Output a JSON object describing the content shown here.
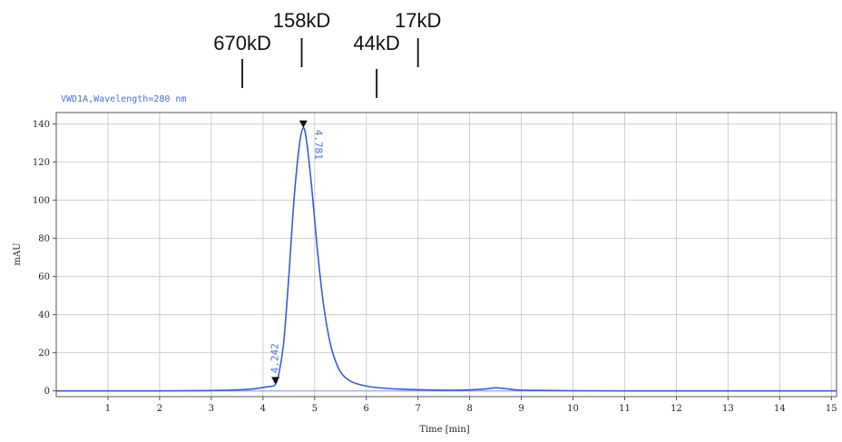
{
  "chart_data": {
    "type": "line",
    "signal_label": "VWD1A,Wavelength=280 nm",
    "xlabel": "Time [min]",
    "ylabel": "mAU",
    "xlim": [
      0,
      15.1
    ],
    "ylim": [
      -3,
      146
    ],
    "x_ticks": [
      1,
      2,
      3,
      4,
      5,
      6,
      7,
      8,
      9,
      10,
      11,
      12,
      13,
      14,
      15
    ],
    "y_ticks": [
      0,
      20,
      40,
      60,
      80,
      100,
      120,
      140
    ],
    "grid": true,
    "series": [
      {
        "color": "#3b5bd6",
        "x": [
          0,
          1,
          2,
          3,
          3.5,
          3.8,
          4.0,
          4.1,
          4.2,
          4.242,
          4.3,
          4.4,
          4.5,
          4.6,
          4.7,
          4.781,
          4.85,
          4.95,
          5.05,
          5.15,
          5.25,
          5.35,
          5.5,
          5.7,
          6.0,
          6.3,
          6.6,
          7.0,
          7.5,
          8.0,
          8.3,
          8.5,
          8.7,
          9.0,
          10,
          11,
          12,
          13,
          14,
          15.1
        ],
        "y": [
          0,
          0,
          0,
          0.2,
          0.5,
          1.0,
          1.8,
          2.2,
          2.6,
          3.5,
          8,
          25,
          60,
          100,
          128,
          138,
          130,
          105,
          75,
          50,
          32,
          20,
          10,
          5,
          2.5,
          1.5,
          1.0,
          0.6,
          0.4,
          0.5,
          1.0,
          1.6,
          1.2,
          0.4,
          0.1,
          0,
          0,
          0,
          0,
          0
        ]
      }
    ],
    "peaks": [
      {
        "time": 4.242,
        "y": 3.5,
        "label": "4.242"
      },
      {
        "time": 4.781,
        "y": 138,
        "label": "4.781"
      }
    ],
    "size_markers": [
      {
        "label": "670kD",
        "time": 3.6
      },
      {
        "label": "158kD",
        "time": 4.75
      },
      {
        "label": "44kD",
        "time": 6.2
      },
      {
        "label": "17kD",
        "time": 7.0
      }
    ]
  }
}
